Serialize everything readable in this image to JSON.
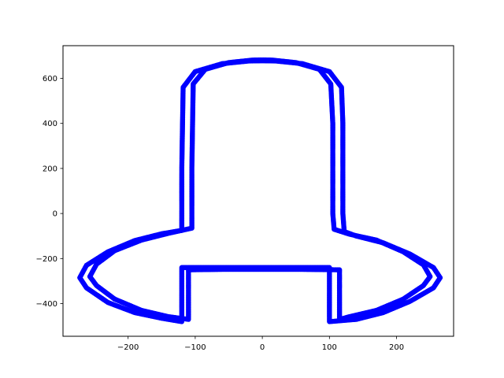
{
  "chart_data": {
    "type": "scatter",
    "title": "",
    "xlabel": "",
    "ylabel": "",
    "xlim": [
      -297,
      285
    ],
    "ylim": [
      -545,
      745
    ],
    "grid": false,
    "marker_color": "#0000ff",
    "x_ticks": [
      {
        "value": -200,
        "label": "−200"
      },
      {
        "value": -100,
        "label": "−100"
      },
      {
        "value": 0,
        "label": "0"
      },
      {
        "value": 100,
        "label": "100"
      },
      {
        "value": 200,
        "label": "200"
      }
    ],
    "y_ticks": [
      {
        "value": -400,
        "label": "−400"
      },
      {
        "value": -200,
        "label": "−200"
      },
      {
        "value": 0,
        "label": "0"
      },
      {
        "value": 200,
        "label": "200"
      },
      {
        "value": 400,
        "label": "400"
      },
      {
        "value": 600,
        "label": "600"
      }
    ],
    "series": [
      {
        "x": [
          -120,
          -120,
          -118,
          -100,
          -60,
          -20,
          0,
          20,
          60,
          100,
          118,
          120,
          120,
          120,
          122,
          140,
          180,
          220,
          255,
          265,
          255,
          220,
          180,
          140,
          100,
          100,
          100,
          60,
          0,
          -60,
          -120,
          -120,
          -120,
          -150,
          -190,
          -230,
          -262,
          -272,
          -262,
          -230,
          -190,
          -150,
          -120
        ],
        "y": [
          -75,
          200,
          560,
          630,
          665,
          677,
          678,
          677,
          665,
          630,
          560,
          400,
          200,
          0,
          -80,
          -100,
          -130,
          -180,
          -240,
          -285,
          -330,
          -390,
          -440,
          -470,
          -480,
          -350,
          -240,
          -240,
          -240,
          -240,
          -240,
          -350,
          -480,
          -465,
          -440,
          -395,
          -330,
          -285,
          -230,
          -170,
          -120,
          -90,
          -75
        ]
      },
      {
        "x": [
          -105,
          -105,
          -103,
          -85,
          -50,
          -15,
          0,
          15,
          50,
          85,
          102,
          105,
          105,
          105,
          107,
          130,
          170,
          210,
          240,
          250,
          240,
          210,
          170,
          130,
          115,
          115,
          115,
          60,
          0,
          -60,
          -110,
          -110,
          -110,
          -140,
          -180,
          -220,
          -247,
          -257,
          -247,
          -220,
          -180,
          -140,
          -105
        ],
        "y": [
          -65,
          200,
          575,
          640,
          670,
          681,
          682,
          681,
          670,
          640,
          575,
          400,
          200,
          0,
          -70,
          -92,
          -118,
          -170,
          -228,
          -280,
          -320,
          -380,
          -430,
          -458,
          -470,
          -350,
          -250,
          -248,
          -248,
          -248,
          -250,
          -350,
          -470,
          -458,
          -430,
          -380,
          -320,
          -280,
          -225,
          -165,
          -118,
          -88,
          -65
        ]
      }
    ]
  }
}
